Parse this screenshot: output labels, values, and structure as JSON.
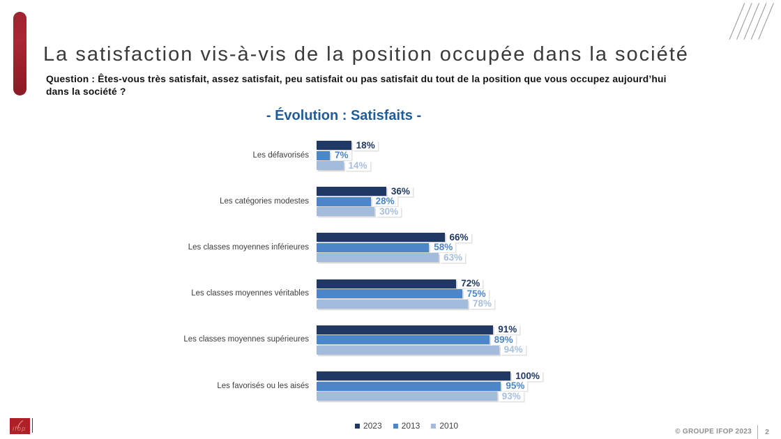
{
  "slide": {
    "title": "La satisfaction vis-à-vis de la position occupée dans la société",
    "question_lines": [
      "Question : Êtes-vous très satisfait, assez satisfait, peu satisfait ou pas satisfait du tout de la position que vous occupez aujourd’hui",
      "dans la société ?"
    ],
    "copyright": "© GROUPE IFOP 2023",
    "page_number": "2",
    "logo_text": "ifop"
  },
  "chart_data": {
    "type": "bar",
    "orientation": "horizontal",
    "title": "- Évolution : Satisfaits -",
    "categories": [
      "Les défavorisés",
      "Les catégories modestes",
      "Les classes moyennes inférieures",
      "Les classes moyennes véritables",
      "Les classes moyennes supérieures",
      "Les favorisés ou les aisés"
    ],
    "series": [
      {
        "name": "2023",
        "color": "#1f3864",
        "label_color": "#1f3864",
        "values": [
          18,
          36,
          66,
          72,
          91,
          100
        ],
        "labels": [
          "18%",
          "36%",
          "66%",
          "72%",
          "91%",
          "100%"
        ]
      },
      {
        "name": "2013",
        "color": "#4a86c8",
        "label_color": "#4a86c8",
        "values": [
          7,
          28,
          58,
          75,
          89,
          95
        ],
        "labels": [
          "7%",
          "28%",
          "58%",
          "75%",
          "89%",
          "95%"
        ]
      },
      {
        "name": "2010",
        "color": "#a4bcdc",
        "label_color": "#a7bfdd",
        "values": [
          14,
          30,
          63,
          78,
          94,
          93
        ],
        "labels": [
          "14%",
          "30%",
          "63%",
          "78%",
          "94%",
          "93%"
        ]
      }
    ],
    "value_suffix": "%",
    "xlim": [
      0,
      100
    ],
    "grid": false,
    "legend_position": "bottom-center",
    "accent_colors": {
      "title_blue": "#1f5c99",
      "brand_red": "#a5222e"
    }
  }
}
